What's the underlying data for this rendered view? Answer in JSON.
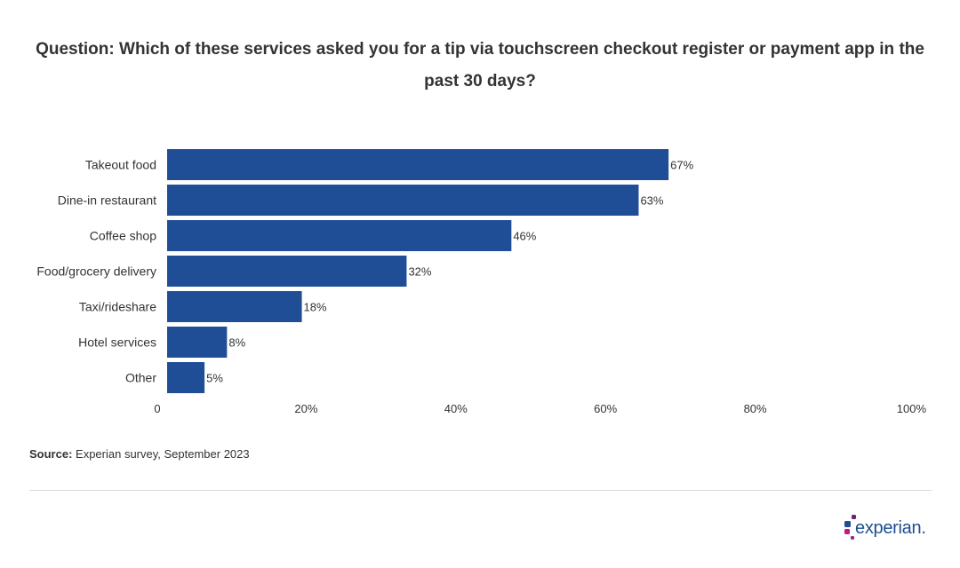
{
  "title": "Question: Which of these services asked you for a tip via touchscreen checkout register or payment app in the past 30 days?",
  "source_label": "Source:",
  "source_text": "Experian survey, September 2023",
  "logo_text": "experian.",
  "colors": {
    "bar": "#1f4e96",
    "text": "#333333",
    "logo_blue": "#1d4f91",
    "logo_purple": "#6d2077",
    "logo_magenta": "#c1188b"
  },
  "chart_data": {
    "type": "bar",
    "orientation": "horizontal",
    "categories": [
      "Takeout food",
      "Dine-in restaurant",
      "Coffee shop",
      "Food/grocery delivery",
      "Taxi/rideshare",
      "Hotel services",
      "Other"
    ],
    "values": [
      67,
      63,
      46,
      32,
      18,
      8,
      5
    ],
    "value_labels": [
      "67%",
      "63%",
      "46%",
      "32%",
      "18%",
      "8%",
      "5%"
    ],
    "xlim": [
      0,
      100
    ],
    "x_ticks": [
      0,
      20,
      40,
      60,
      80,
      100
    ],
    "x_tick_labels": [
      "0",
      "20%",
      "40%",
      "60%",
      "80%",
      "100%"
    ],
    "grid": false
  }
}
